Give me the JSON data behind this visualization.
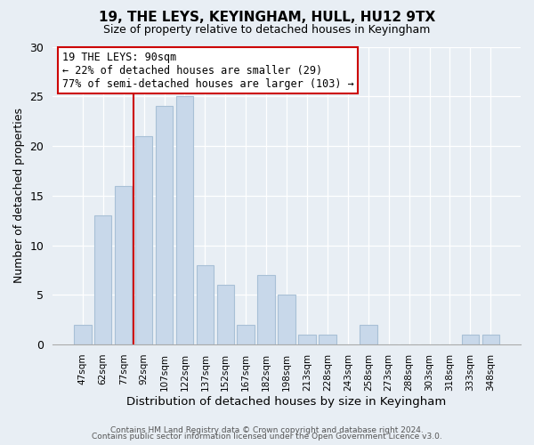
{
  "title": "19, THE LEYS, KEYINGHAM, HULL, HU12 9TX",
  "subtitle": "Size of property relative to detached houses in Keyingham",
  "xlabel": "Distribution of detached houses by size in Keyingham",
  "ylabel": "Number of detached properties",
  "bar_color": "#c8d8ea",
  "bar_edge_color": "#a8c0d6",
  "categories": [
    "47sqm",
    "62sqm",
    "77sqm",
    "92sqm",
    "107sqm",
    "122sqm",
    "137sqm",
    "152sqm",
    "167sqm",
    "182sqm",
    "198sqm",
    "213sqm",
    "228sqm",
    "243sqm",
    "258sqm",
    "273sqm",
    "288sqm",
    "303sqm",
    "318sqm",
    "333sqm",
    "348sqm"
  ],
  "values": [
    2,
    13,
    16,
    21,
    24,
    25,
    8,
    6,
    2,
    7,
    5,
    1,
    1,
    0,
    2,
    0,
    0,
    0,
    0,
    1,
    1
  ],
  "ylim": [
    0,
    30
  ],
  "yticks": [
    0,
    5,
    10,
    15,
    20,
    25,
    30
  ],
  "vline_x_index": 2.5,
  "vline_color": "#cc0000",
  "annotation_title": "19 THE LEYS: 90sqm",
  "annotation_line1": "← 22% of detached houses are smaller (29)",
  "annotation_line2": "77% of semi-detached houses are larger (103) →",
  "annotation_box_color": "#ffffff",
  "annotation_box_edge": "#cc0000",
  "footer1": "Contains HM Land Registry data © Crown copyright and database right 2024.",
  "footer2": "Contains public sector information licensed under the Open Government Licence v3.0.",
  "background_color": "#e8eef4",
  "plot_background": "#e8eef4",
  "grid_color": "#ffffff"
}
